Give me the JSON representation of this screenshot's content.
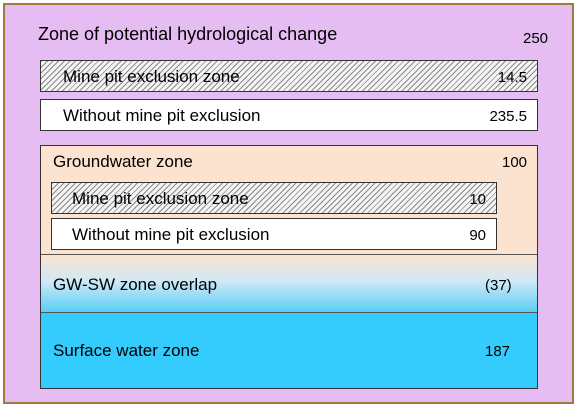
{
  "potential_zone": {
    "title": "Zone of potential hydrological change",
    "value": "250",
    "mine_pit": {
      "label": "Mine pit exclusion zone",
      "value": "14.5"
    },
    "without_mine_pit": {
      "label": "Without mine pit exclusion",
      "value": "235.5"
    }
  },
  "groundwater_zone": {
    "title": "Groundwater zone",
    "value": "100",
    "mine_pit": {
      "label": "Mine pit exclusion zone",
      "value": "10"
    },
    "without_mine_pit": {
      "label": "Without mine pit exclusion",
      "value": "90"
    }
  },
  "overlap_zone": {
    "label": "GW-SW zone overlap",
    "value": "(37)"
  },
  "surface_water_zone": {
    "label": "Surface water zone",
    "value": "187"
  },
  "colors": {
    "outer_fill": "#e5bdf3",
    "outer_border": "#a07a3e",
    "groundwater_fill": "#fbe3cf",
    "surface_water_fill": "#33ccfc"
  }
}
